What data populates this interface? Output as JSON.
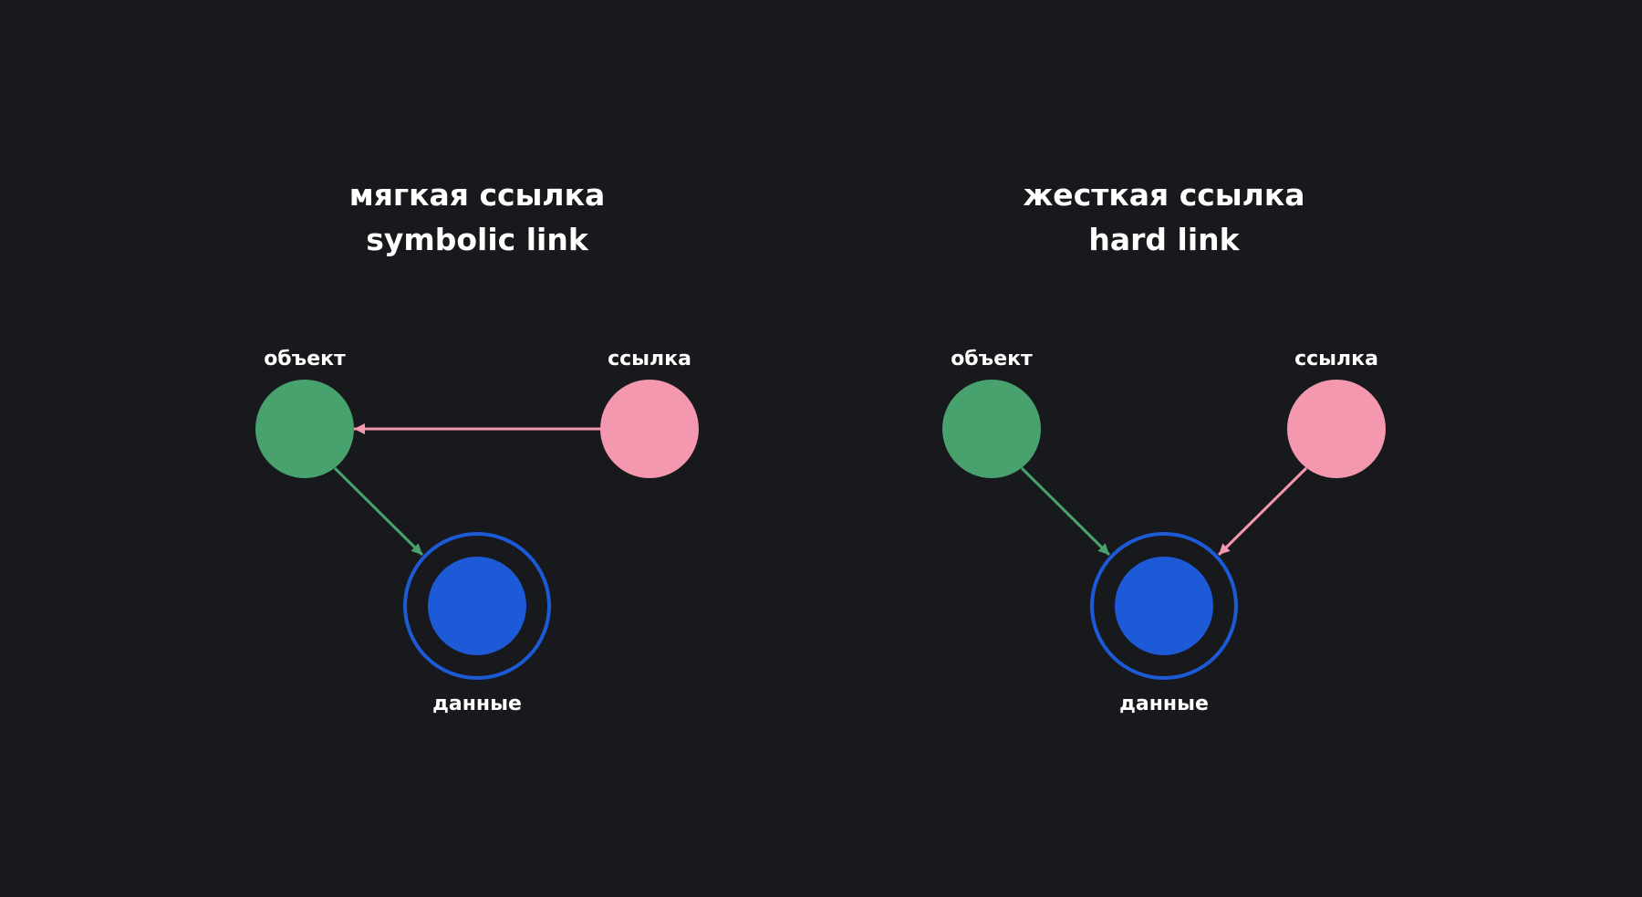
{
  "colors": {
    "background": "#18191c",
    "object_node": "#48a26e",
    "link_node": "#f398ae",
    "data_node": "#1c5ad8",
    "data_ring": "#1c5ad8",
    "text": "#ffffff"
  },
  "diagrams": {
    "symbolic": {
      "title_ru": "мягкая ссылка",
      "title_en": "symbolic link",
      "object_label": "объект",
      "link_label": "ссылка",
      "data_label": "данные"
    },
    "hard": {
      "title_ru": "жесткая ссылка",
      "title_en": "hard link",
      "object_label": "объект",
      "link_label": "ссылка",
      "data_label": "данные"
    }
  }
}
